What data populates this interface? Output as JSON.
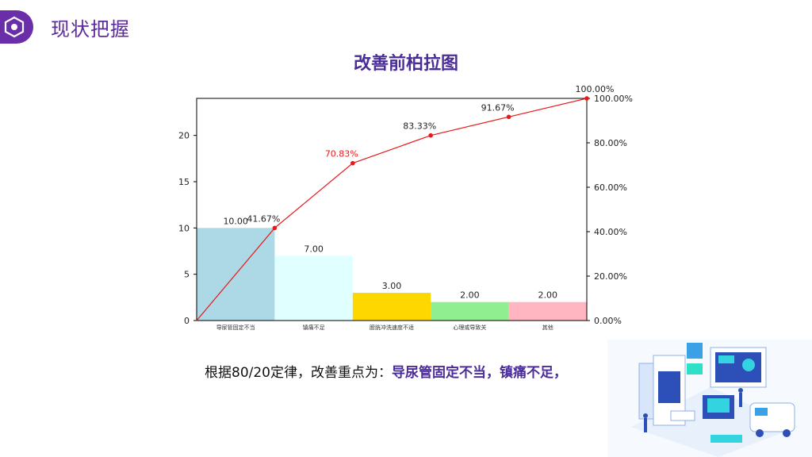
{
  "header": {
    "title": "现状把握",
    "icon": "hexagon-badge-icon"
  },
  "colors": {
    "accent": "#6a2fa8",
    "title": "#4b2d98",
    "line": "#e8191b"
  },
  "chart_data": {
    "type": "bar+line",
    "title": "改善前柏拉图",
    "categories": [
      "导尿管固定不当",
      "镇痛不足",
      "膀胱冲洗速度不适",
      "心理或导致关",
      "其他"
    ],
    "values": [
      10,
      7,
      3,
      2,
      2
    ],
    "value_labels": [
      "10.00",
      "7.00",
      "3.00",
      "2.00",
      "2.00"
    ],
    "bar_colors": [
      "#add8e6",
      "#e0ffff",
      "#ffd700",
      "#90ee90",
      "#ffb6c1"
    ],
    "cumulative_percent": [
      0,
      41.67,
      70.83,
      83.33,
      91.67,
      100.0
    ],
    "cumulative_labels": [
      "41.67%",
      "70.83%",
      "83.33%",
      "91.67%",
      "100.00%"
    ],
    "ylim_left": [
      0,
      24
    ],
    "yticks_left": [
      "0",
      "5",
      "10",
      "15",
      "20"
    ],
    "ylim_right": [
      0,
      100
    ],
    "yticks_right": [
      "0.00%",
      "20.00%",
      "40.00%",
      "60.00%",
      "80.00%",
      "100.00%"
    ],
    "grid": false
  },
  "conclusion": {
    "prefix": "根据80/20定律，改善重点为：",
    "highlight": "导尿管固定不当，镇痛不足，"
  },
  "illustration": {
    "icon": "medical-tech-illustration"
  }
}
